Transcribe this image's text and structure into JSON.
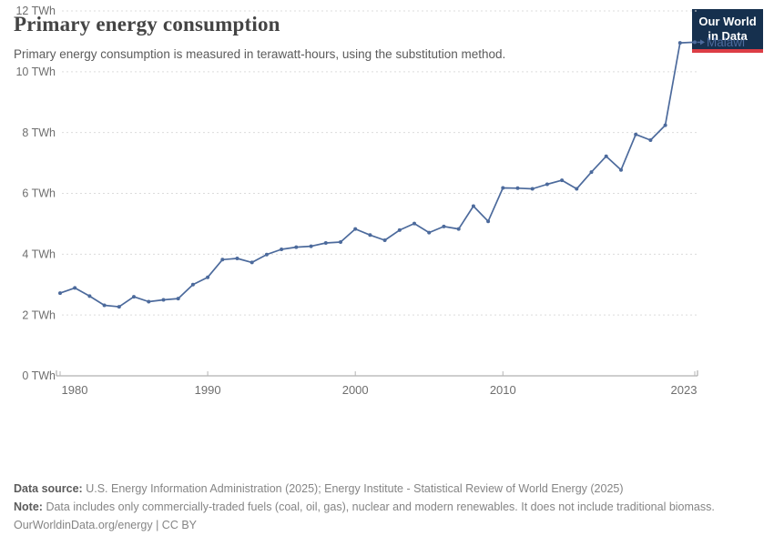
{
  "header": {
    "title": "Primary energy consumption",
    "subtitle": "Primary energy consumption is measured in terawatt-hours, using the substitution method.",
    "logo_line1": "Our World",
    "logo_line2": "in Data"
  },
  "chart_data": {
    "type": "line",
    "title": "Primary energy consumption",
    "entity_label": "Malawi",
    "unit": "TWh",
    "x": [
      1980,
      1981,
      1982,
      1983,
      1984,
      1985,
      1986,
      1987,
      1988,
      1989,
      1990,
      1991,
      1992,
      1993,
      1994,
      1995,
      1996,
      1997,
      1998,
      1999,
      2000,
      2001,
      2002,
      2003,
      2004,
      2005,
      2006,
      2007,
      2008,
      2009,
      2010,
      2011,
      2012,
      2013,
      2014,
      2015,
      2016,
      2017,
      2018,
      2019,
      2020,
      2021,
      2022,
      2023
    ],
    "series": [
      {
        "name": "Malawi",
        "values": [
          2.72,
          2.89,
          2.62,
          2.32,
          2.27,
          2.6,
          2.44,
          2.5,
          2.54,
          3.0,
          3.24,
          3.82,
          3.86,
          3.73,
          3.99,
          4.16,
          4.23,
          4.26,
          4.37,
          4.4,
          4.83,
          4.63,
          4.46,
          4.79,
          5.01,
          4.71,
          4.91,
          4.83,
          5.58,
          5.08,
          6.18,
          6.17,
          6.15,
          6.3,
          6.43,
          6.15,
          6.7,
          7.22,
          6.77,
          7.94,
          7.75,
          8.24,
          10.95,
          10.97
        ]
      }
    ],
    "xlim": [
      1980,
      2023
    ],
    "ylim": [
      0,
      12
    ],
    "yticks": [
      0,
      2,
      4,
      6,
      8,
      10,
      12
    ],
    "ytick_suffix": " TWh",
    "xticks": [
      1980,
      1990,
      2000,
      2010,
      2023
    ],
    "grid": "dashed-horizontal",
    "legend_position": "end-of-line"
  },
  "colors": {
    "line": "#4c6a9c",
    "entity_label": "#4c6a9c",
    "grid": "#dcdcdc",
    "axis": "#9e9e9e",
    "tick_text": "#6e6e6e",
    "logo_bg": "#16304e",
    "logo_bar": "#dc3e45"
  },
  "footer": {
    "source_label": "Data source:",
    "source_text": "U.S. Energy Information Administration (2025); Energy Institute - Statistical Review of World Energy (2025)",
    "note_label": "Note:",
    "note_text": "Data includes only commercially-traded fuels (coal, oil, gas), nuclear and modern renewables. It does not include traditional biomass.",
    "cc_line": "OurWorldinData.org/energy | CC BY"
  }
}
